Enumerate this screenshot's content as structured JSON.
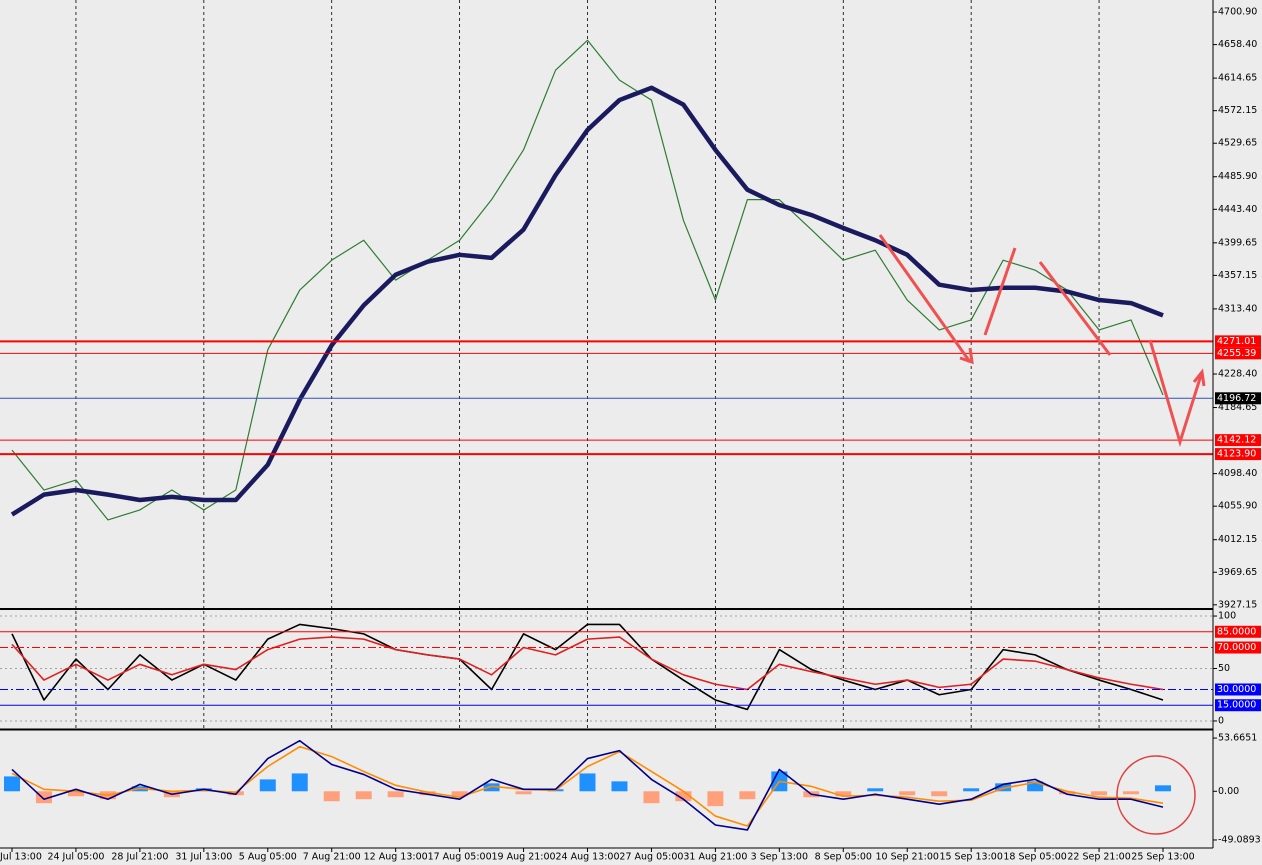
{
  "chart_data": [
    {
      "type": "line",
      "categories": [
        "Jul 13:00",
        null,
        "24 Jul 05:00",
        null,
        "28 Jul 21:00",
        null,
        "31 Jul 13:00",
        null,
        "5 Aug 05:00",
        null,
        "7 Aug 21:00",
        null,
        "12 Aug 13:00",
        null,
        "17 Aug 05:00",
        null,
        "19 Aug 21:00",
        null,
        "24 Aug 13:00",
        null,
        "27 Aug 05:00",
        null,
        "31 Aug 21:00",
        null,
        "3 Sep 13:00",
        null,
        "8 Sep 05:00",
        null,
        "10 Sep 21:00",
        null,
        "15 Sep 13:00",
        null,
        "18 Sep 05:00",
        null,
        "22 Sep 21:00",
        null,
        "25 Sep 13:00"
      ],
      "series": [
        {
          "color": "#2e7d32",
          "values": [
            4129,
            4077,
            4090,
            4038,
            4051,
            4077,
            4051,
            4077,
            4260,
            4338,
            4377,
            4403,
            4351,
            4377,
            4403,
            4456,
            4521,
            4625,
            4664,
            4612,
            4586,
            4429,
            4325,
            4456,
            4456,
            4417,
            4377,
            4390,
            4325,
            4286,
            4299,
            4377,
            4364,
            4338,
            4286,
            4299,
            4201
          ]
        },
        {
          "color": "#1a1a5e",
          "values": [
            4045,
            4071,
            4077,
            4071,
            4064,
            4068,
            4064,
            4064,
            4110,
            4195,
            4266,
            4318,
            4358,
            4375,
            4384,
            4380,
            4417,
            4488,
            4547,
            4586,
            4602,
            4580,
            4521,
            4469,
            4449,
            4436,
            4419,
            4403,
            4384,
            4345,
            4338,
            4341,
            4341,
            4336,
            4325,
            4321,
            4305
          ]
        }
      ],
      "ylim": [
        3923,
        4716.6
      ],
      "yticks": [
        {
          "value": 4700.9,
          "label": "4700.90"
        },
        {
          "value": 4658.4,
          "label": "4658.40"
        },
        4614.65,
        4572.15,
        4529.65,
        {
          "value": 4485.9,
          "label": "4485.90"
        },
        {
          "value": 4443.4,
          "label": "4443.40"
        },
        4399.65,
        4357.15,
        {
          "value": 4313.4,
          "label": "4313.40"
        },
        {
          "value": 4228.4,
          "label": "4228.40"
        },
        4184.65,
        {
          "value": 4098.4,
          "label": "4098.40"
        },
        {
          "value": 4055.9,
          "label": "4055.90"
        },
        4012.15,
        3969.65,
        3927.15
      ],
      "hlines": [
        {
          "value": 4271.01,
          "color": "#ff0000"
        },
        {
          "value": 4255.39,
          "color": "#ff0000"
        },
        {
          "value": 4196.72,
          "color": "#3050c0"
        },
        {
          "value": 4142.12,
          "color": "#ff0000"
        },
        {
          "value": 4123.9,
          "label": "4123.90",
          "color": "#ff0000"
        }
      ],
      "grid": true
    },
    {
      "type": "line",
      "series": [
        {
          "color": "#000000",
          "values": [
            83,
            20,
            59,
            30,
            63,
            39,
            54,
            39,
            78,
            92,
            88,
            83,
            68,
            63,
            59,
            30,
            83,
            68,
            92,
            92,
            59,
            39,
            20,
            11,
            68,
            49,
            39,
            30,
            39,
            25,
            30,
            68,
            63,
            49,
            39,
            30,
            20
          ]
        },
        {
          "color": "#e02020",
          "values": [
            73,
            39,
            54,
            39,
            54,
            44,
            54,
            49,
            68,
            78,
            80,
            78,
            68,
            63,
            59,
            44,
            70,
            63,
            78,
            80,
            59,
            44,
            35,
            30,
            54,
            47,
            41,
            35,
            39,
            32,
            35,
            59,
            57,
            49,
            41,
            35,
            30
          ]
        }
      ],
      "ylim": [
        -6.7,
        104.8
      ],
      "yticks": [
        100,
        50,
        0
      ],
      "hlines": [
        {
          "value": 85,
          "label": "85.0000",
          "color": "#ff0000"
        },
        {
          "value": 70,
          "label": "70.0000",
          "color": "#ff0000",
          "dash": true
        },
        {
          "value": 30,
          "label": "30.0000",
          "color": "#0000ff",
          "dash": true
        },
        {
          "value": 15,
          "label": "15.0000",
          "color": "#0000ff"
        }
      ],
      "grid": true
    },
    {
      "type": "macd",
      "histogram": {
        "colors": [
          "#1e90ff",
          "#ffa07a"
        ],
        "values": [
          15,
          -12,
          -5,
          -8,
          5,
          -6,
          3,
          -4,
          12,
          18,
          -10,
          -8,
          -6,
          -4,
          -5,
          8,
          -3,
          2,
          18,
          10,
          -12,
          -10,
          -15,
          -8,
          20,
          -6,
          -5,
          3,
          -4,
          -5,
          3,
          8,
          10,
          -3,
          -4,
          -3,
          6
        ]
      },
      "series": [
        {
          "color": "#ff8c00",
          "values": [
            18,
            2,
            0,
            -4,
            3,
            0,
            1,
            -1,
            25,
            45,
            35,
            20,
            6,
            -1,
            -6,
            5,
            2,
            1,
            25,
            40,
            20,
            0,
            -25,
            -35,
            10,
            5,
            -5,
            -4,
            -6,
            -10,
            -9,
            3,
            9,
            0,
            -6,
            -7,
            -12
          ]
        },
        {
          "color": "#00008b",
          "values": [
            22,
            -8,
            2,
            -8,
            7,
            -3,
            2,
            -3,
            33,
            51,
            27,
            17,
            2,
            -3,
            -8,
            12,
            2,
            2,
            33,
            41,
            12,
            -8,
            -34,
            -39,
            22,
            -3,
            -8,
            -3,
            -8,
            -13,
            -8,
            7,
            12,
            -3,
            -8,
            -8,
            -16
          ]
        }
      ],
      "ylim": [
        -57.2,
        60.8
      ],
      "yticks": [
        53.6651,
        {
          "value": 0,
          "label": "0.00"
        },
        -49.0893
      ],
      "grid": false
    }
  ]
}
